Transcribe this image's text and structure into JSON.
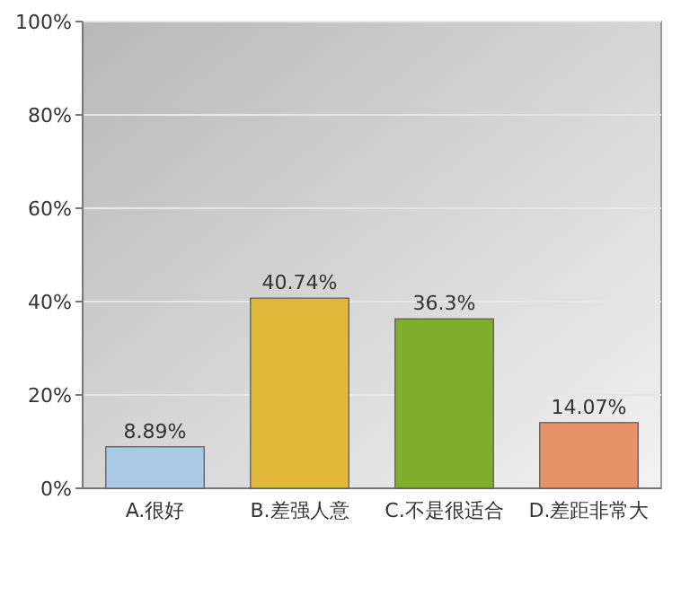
{
  "chart_data": {
    "type": "bar",
    "categories": [
      "A.很好",
      "B.差强人意",
      "C.不是很适合",
      "D.差距非常大"
    ],
    "values": [
      8.89,
      40.74,
      36.3,
      14.07
    ],
    "colors": [
      "#a9c9e6",
      "#e0b83a",
      "#7fad2e",
      "#e8926a"
    ],
    "value_labels": [
      "8.89%",
      "40.74%",
      "36.3%",
      "14.07%"
    ],
    "ylim": [
      0,
      100
    ],
    "yticks": [
      {
        "value": 0,
        "label": "0%"
      },
      {
        "value": 20,
        "label": "20%"
      },
      {
        "value": 40,
        "label": "40%"
      },
      {
        "value": 60,
        "label": "60%"
      },
      {
        "value": 80,
        "label": "80%"
      },
      {
        "value": 100,
        "label": "100%"
      }
    ],
    "grid": "y"
  }
}
